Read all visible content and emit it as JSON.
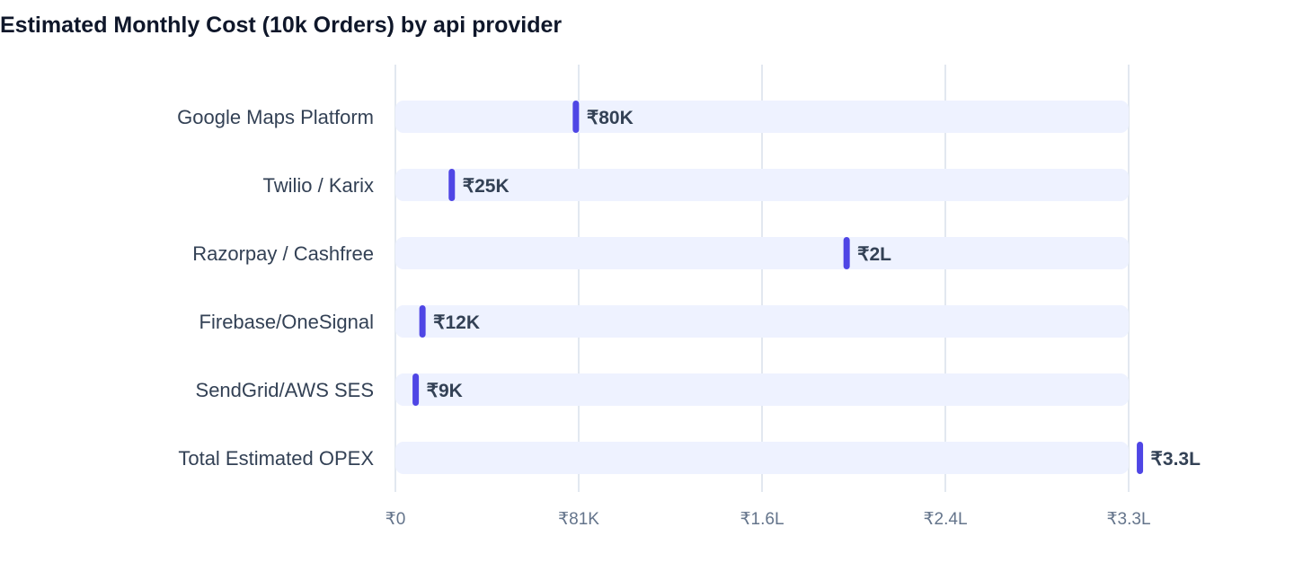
{
  "chart_data": {
    "type": "bar",
    "title": "Estimated Monthly Cost (10k Orders) by api provider",
    "xlabel": "",
    "ylabel": "",
    "categories": [
      "Google Maps Platform",
      "Twilio / Karix",
      "Razorpay / Cashfree",
      "Firebase/OneSignal",
      "SendGrid/AWS SES",
      "Total Estimated OPEX"
    ],
    "values": [
      80000,
      25000,
      200000,
      12000,
      9000,
      330000
    ],
    "value_labels": [
      "₹80K",
      "₹25K",
      "₹2L",
      "₹12K",
      "₹9K",
      "₹3.3L"
    ],
    "xlim": [
      0,
      325000
    ],
    "x_ticks": [
      0,
      81250,
      162500,
      243750,
      325000
    ],
    "x_tick_labels": [
      "₹0",
      "₹81K",
      "₹1.6L",
      "₹2.4L",
      "₹3.3L"
    ],
    "grid": true,
    "legend": "none",
    "colors": {
      "marker": "#4f46e5",
      "track": "#eef2ff",
      "grid": "#e2e8f0",
      "label": "#334155",
      "tick": "#64748b",
      "title": "#0f172a"
    }
  }
}
